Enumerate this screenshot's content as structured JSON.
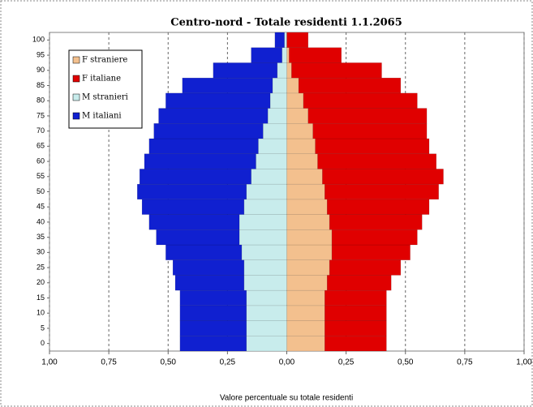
{
  "chart_data": {
    "type": "pyramid",
    "title": "Centro-nord - Totale residenti 1.1.2065",
    "x_label": "Valore percentuale su totale residenti",
    "categories": [
      "0",
      "5",
      "10",
      "15",
      "20",
      "25",
      "30",
      "35",
      "40",
      "45",
      "50",
      "55",
      "60",
      "65",
      "70",
      "75",
      "80",
      "85",
      "90",
      "95",
      "100"
    ],
    "series": [
      {
        "name": "F straniere",
        "color": "#f3c08e",
        "side": "right",
        "values": [
          0.16,
          0.16,
          0.16,
          0.16,
          0.17,
          0.18,
          0.19,
          0.19,
          0.18,
          0.17,
          0.16,
          0.15,
          0.13,
          0.12,
          0.11,
          0.09,
          0.07,
          0.05,
          0.02,
          0.01,
          0.0
        ]
      },
      {
        "name": "F italiane",
        "color": "#e00000",
        "side": "right",
        "values": [
          0.26,
          0.26,
          0.26,
          0.26,
          0.27,
          0.3,
          0.33,
          0.36,
          0.39,
          0.43,
          0.48,
          0.51,
          0.5,
          0.48,
          0.48,
          0.5,
          0.48,
          0.43,
          0.38,
          0.22,
          0.09
        ]
      },
      {
        "name": "M stranieri",
        "color": "#c8ecec",
        "side": "left",
        "values": [
          0.17,
          0.17,
          0.17,
          0.17,
          0.18,
          0.18,
          0.19,
          0.2,
          0.2,
          0.18,
          0.17,
          0.15,
          0.13,
          0.12,
          0.1,
          0.08,
          0.07,
          0.06,
          0.04,
          0.02,
          0.01
        ]
      },
      {
        "name": "M italiani",
        "color": "#1020d0",
        "side": "left",
        "values": [
          0.28,
          0.28,
          0.28,
          0.28,
          0.29,
          0.3,
          0.32,
          0.35,
          0.38,
          0.43,
          0.46,
          0.47,
          0.47,
          0.46,
          0.46,
          0.46,
          0.44,
          0.38,
          0.27,
          0.13,
          0.04
        ]
      }
    ],
    "xlim": [
      -1,
      1
    ],
    "xticks": [
      {
        "value": -1,
        "label": "1,00"
      },
      {
        "value": -0.75,
        "label": "0,75"
      },
      {
        "value": -0.5,
        "label": "0,50"
      },
      {
        "value": -0.25,
        "label": "0,25"
      },
      {
        "value": 0,
        "label": "0,00"
      },
      {
        "value": 0.25,
        "label": "0,25"
      },
      {
        "value": 0.5,
        "label": "0,50"
      },
      {
        "value": 0.75,
        "label": "0,75"
      },
      {
        "value": 1,
        "label": "1,00"
      }
    ],
    "grid": true,
    "legend": "top-left"
  }
}
